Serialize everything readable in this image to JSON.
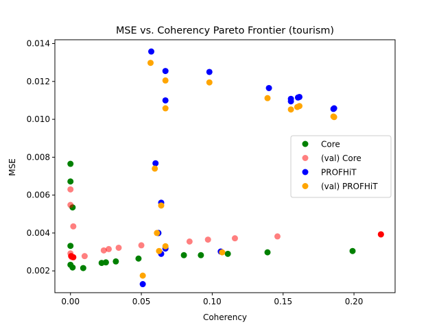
{
  "chart_data": {
    "type": "scatter",
    "title": "MSE vs. Coherency Pareto Frontier (tourism)",
    "xlabel": "Coherency",
    "ylabel": "MSE",
    "xlim": [
      -0.011,
      0.229
    ],
    "ylim": [
      0.00085,
      0.0142
    ],
    "xticks": [
      0.0,
      0.05,
      0.1,
      0.15,
      0.2
    ],
    "xtick_labels": [
      "0.00",
      "0.05",
      "0.10",
      "0.15",
      "0.20"
    ],
    "yticks": [
      0.002,
      0.004,
      0.006,
      0.008,
      0.01,
      0.012,
      0.014
    ],
    "ytick_labels": [
      "0.002",
      "0.004",
      "0.006",
      "0.008",
      "0.010",
      "0.012",
      "0.014"
    ],
    "grid": false,
    "legend_position": "center-right",
    "series": [
      {
        "name": "Core",
        "color": "#008000",
        "opacity": 1,
        "points": [
          [
            0.0,
            0.00765
          ],
          [
            0.0,
            0.00672
          ],
          [
            0.0015,
            0.00535
          ],
          [
            0.0,
            0.00332
          ],
          [
            0.0,
            0.00232
          ],
          [
            0.0015,
            0.00218
          ],
          [
            0.009,
            0.00215
          ],
          [
            0.022,
            0.00242
          ],
          [
            0.025,
            0.00245
          ],
          [
            0.032,
            0.0025
          ],
          [
            0.048,
            0.00265
          ],
          [
            0.062,
            0.004
          ],
          [
            0.08,
            0.00283
          ],
          [
            0.092,
            0.00283
          ],
          [
            0.111,
            0.0029
          ],
          [
            0.139,
            0.00298
          ],
          [
            0.199,
            0.00305
          ]
        ]
      },
      {
        "name": "(val) Core",
        "color": "#ff0000",
        "opacity": 0.5,
        "points": [
          [
            0.0,
            0.0063
          ],
          [
            0.0,
            0.00548
          ],
          [
            0.002,
            0.00435
          ],
          [
            0.0,
            0.00292
          ],
          [
            0.001,
            0.00272
          ],
          [
            0.01,
            0.00278
          ],
          [
            0.0235,
            0.00308
          ],
          [
            0.027,
            0.00315
          ],
          [
            0.034,
            0.00322
          ],
          [
            0.05,
            0.00335
          ],
          [
            0.084,
            0.00355
          ],
          [
            0.097,
            0.00365
          ],
          [
            0.116,
            0.00372
          ],
          [
            0.146,
            0.00382
          ],
          [
            0.219,
            0.00392
          ]
        ]
      },
      {
        "name": "PROFHiT",
        "color": "#0000ff",
        "opacity": 1,
        "points": [
          [
            0.057,
            0.01358
          ],
          [
            0.067,
            0.01255
          ],
          [
            0.098,
            0.0125
          ],
          [
            0.067,
            0.011
          ],
          [
            0.14,
            0.01165
          ],
          [
            0.1555,
            0.01108
          ],
          [
            0.1555,
            0.01095
          ],
          [
            0.1605,
            0.01115
          ],
          [
            0.1615,
            0.01118
          ],
          [
            0.186,
            0.01058
          ],
          [
            0.1855,
            0.01055
          ],
          [
            0.06,
            0.00768
          ],
          [
            0.064,
            0.0056
          ],
          [
            0.062,
            0.004
          ],
          [
            0.067,
            0.00318
          ],
          [
            0.064,
            0.0029
          ],
          [
            0.051,
            0.0013
          ],
          [
            0.106,
            0.00302
          ]
        ]
      },
      {
        "name": "(val) PROFHiT",
        "color": "#ffa500",
        "opacity": 1,
        "points": [
          [
            0.0565,
            0.01298
          ],
          [
            0.067,
            0.01205
          ],
          [
            0.098,
            0.01195
          ],
          [
            0.067,
            0.01058
          ],
          [
            0.139,
            0.01112
          ],
          [
            0.1555,
            0.01052
          ],
          [
            0.16,
            0.01065
          ],
          [
            0.1615,
            0.0107
          ],
          [
            0.1855,
            0.01015
          ],
          [
            0.186,
            0.01012
          ],
          [
            0.0595,
            0.0074
          ],
          [
            0.064,
            0.00545
          ],
          [
            0.061,
            0.004
          ],
          [
            0.067,
            0.0033
          ],
          [
            0.0625,
            0.00305
          ],
          [
            0.051,
            0.00175
          ],
          [
            0.107,
            0.00298
          ]
        ]
      }
    ],
    "extra_points": [
      {
        "color": "#ff0000",
        "opacity": 1,
        "points": [
          [
            0.0005,
            0.00278
          ],
          [
            0.002,
            0.00272
          ],
          [
            0.219,
            0.00393
          ]
        ]
      }
    ]
  }
}
